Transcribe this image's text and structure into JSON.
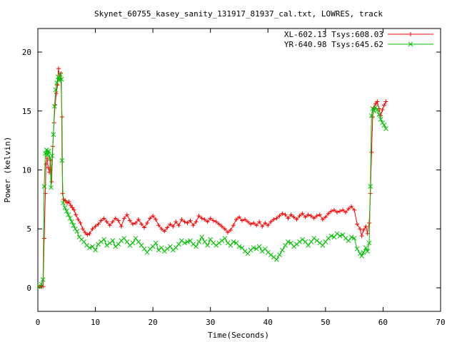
{
  "chart_data": {
    "type": "line",
    "title": "Skynet_60755_kasey_sanity_131917_81937_cal.txt, LOWRES, track",
    "xlabel": "Time(Seconds)",
    "ylabel": "Power (kelvin)",
    "xlim": [
      0,
      70
    ],
    "ylim": [
      -2,
      22
    ],
    "xticks": [
      0,
      10,
      20,
      30,
      40,
      50,
      60,
      70
    ],
    "yticks": [
      0,
      5,
      10,
      15,
      20
    ],
    "grid": false,
    "legend_position": "top-right",
    "series": [
      {
        "name": "XL-602.13 Tsys:608.03",
        "color": "#ff0000",
        "marker": "plus",
        "points": [
          [
            0.3,
            0.1
          ],
          [
            0.6,
            0.2
          ],
          [
            0.9,
            0.1
          ],
          [
            1.1,
            4.2
          ],
          [
            1.3,
            8.0
          ],
          [
            1.4,
            10.5
          ],
          [
            1.6,
            11.0
          ],
          [
            1.8,
            10.2
          ],
          [
            2.0,
            9.8
          ],
          [
            2.2,
            10.8
          ],
          [
            2.4,
            9.0
          ],
          [
            2.6,
            12.0
          ],
          [
            2.8,
            14.0
          ],
          [
            3.0,
            15.5
          ],
          [
            3.2,
            16.5
          ],
          [
            3.4,
            17.2
          ],
          [
            3.6,
            18.6
          ],
          [
            3.8,
            17.8
          ],
          [
            4.0,
            18.2
          ],
          [
            4.2,
            14.5
          ],
          [
            4.3,
            8.0
          ],
          [
            4.5,
            7.5
          ],
          [
            4.8,
            7.4
          ],
          [
            5.1,
            7.2
          ],
          [
            5.4,
            7.3
          ],
          [
            5.7,
            7.0
          ],
          [
            6.0,
            6.8
          ],
          [
            6.3,
            6.6
          ],
          [
            6.6,
            6.2
          ],
          [
            7.0,
            5.8
          ],
          [
            7.4,
            5.5
          ],
          [
            7.8,
            5.0
          ],
          [
            8.2,
            4.7
          ],
          [
            8.6,
            4.5
          ],
          [
            9.0,
            4.6
          ],
          [
            9.5,
            5.0
          ],
          [
            10.0,
            5.2
          ],
          [
            10.5,
            5.4
          ],
          [
            11.0,
            5.7
          ],
          [
            11.5,
            5.9
          ],
          [
            12.0,
            5.6
          ],
          [
            12.5,
            5.3
          ],
          [
            13.0,
            5.6
          ],
          [
            13.5,
            5.9
          ],
          [
            14.0,
            5.7
          ],
          [
            14.5,
            5.2
          ],
          [
            15.0,
            5.9
          ],
          [
            15.5,
            6.2
          ],
          [
            16.0,
            5.7
          ],
          [
            16.5,
            5.4
          ],
          [
            17.0,
            5.5
          ],
          [
            17.5,
            5.8
          ],
          [
            18.0,
            5.4
          ],
          [
            18.5,
            5.1
          ],
          [
            19.0,
            5.5
          ],
          [
            19.5,
            5.9
          ],
          [
            20.0,
            6.1
          ],
          [
            20.5,
            5.8
          ],
          [
            21.0,
            5.3
          ],
          [
            21.5,
            5.0
          ],
          [
            22.0,
            4.8
          ],
          [
            22.5,
            5.1
          ],
          [
            23.0,
            5.4
          ],
          [
            23.5,
            5.2
          ],
          [
            24.0,
            5.6
          ],
          [
            24.5,
            5.3
          ],
          [
            25.0,
            5.8
          ],
          [
            25.5,
            5.6
          ],
          [
            26.0,
            5.5
          ],
          [
            26.5,
            5.7
          ],
          [
            27.0,
            5.3
          ],
          [
            27.5,
            5.6
          ],
          [
            28.0,
            6.1
          ],
          [
            28.5,
            5.9
          ],
          [
            29.0,
            5.8
          ],
          [
            29.5,
            5.6
          ],
          [
            30.0,
            5.9
          ],
          [
            30.5,
            5.7
          ],
          [
            31.0,
            5.6
          ],
          [
            31.5,
            5.4
          ],
          [
            32.0,
            5.2
          ],
          [
            32.5,
            5.0
          ],
          [
            33.0,
            4.7
          ],
          [
            33.5,
            4.9
          ],
          [
            34.0,
            5.3
          ],
          [
            34.5,
            5.8
          ],
          [
            35.0,
            6.0
          ],
          [
            35.5,
            5.7
          ],
          [
            36.0,
            5.8
          ],
          [
            36.5,
            5.6
          ],
          [
            37.0,
            5.4
          ],
          [
            37.5,
            5.5
          ],
          [
            38.0,
            5.3
          ],
          [
            38.5,
            5.6
          ],
          [
            39.0,
            5.2
          ],
          [
            39.5,
            5.5
          ],
          [
            40.0,
            5.3
          ],
          [
            40.5,
            5.6
          ],
          [
            41.0,
            5.8
          ],
          [
            41.5,
            5.9
          ],
          [
            42.0,
            6.1
          ],
          [
            42.5,
            6.3
          ],
          [
            43.0,
            6.2
          ],
          [
            43.5,
            5.9
          ],
          [
            44.0,
            6.2
          ],
          [
            44.5,
            6.0
          ],
          [
            45.0,
            5.8
          ],
          [
            45.5,
            6.1
          ],
          [
            46.0,
            6.3
          ],
          [
            46.5,
            6.0
          ],
          [
            47.0,
            6.2
          ],
          [
            47.5,
            6.1
          ],
          [
            48.0,
            5.9
          ],
          [
            48.5,
            6.1
          ],
          [
            49.0,
            6.2
          ],
          [
            49.5,
            5.8
          ],
          [
            50.0,
            6.0
          ],
          [
            50.5,
            6.3
          ],
          [
            51.0,
            6.5
          ],
          [
            51.5,
            6.6
          ],
          [
            52.0,
            6.4
          ],
          [
            52.5,
            6.5
          ],
          [
            53.0,
            6.6
          ],
          [
            53.5,
            6.4
          ],
          [
            54.0,
            6.7
          ],
          [
            54.5,
            6.9
          ],
          [
            55.0,
            6.6
          ],
          [
            55.5,
            5.4
          ],
          [
            56.0,
            5.0
          ],
          [
            56.3,
            4.4
          ],
          [
            56.6,
            4.9
          ],
          [
            57.0,
            5.2
          ],
          [
            57.3,
            4.6
          ],
          [
            57.6,
            5.5
          ],
          [
            57.8,
            8.0
          ],
          [
            58.0,
            11.5
          ],
          [
            58.2,
            14.5
          ],
          [
            58.4,
            15.3
          ],
          [
            58.7,
            15.6
          ],
          [
            59.0,
            15.8
          ],
          [
            59.3,
            15.2
          ],
          [
            59.6,
            14.6
          ],
          [
            59.9,
            15.1
          ],
          [
            60.2,
            15.5
          ],
          [
            60.5,
            15.8
          ]
        ]
      },
      {
        "name": "YR-640.98 Tsys:645.62",
        "color": "#00c000",
        "marker": "cross",
        "points": [
          [
            0.3,
            0.1
          ],
          [
            0.6,
            0.3
          ],
          [
            0.9,
            0.7
          ],
          [
            1.1,
            8.6
          ],
          [
            1.3,
            11.4
          ],
          [
            1.5,
            11.7
          ],
          [
            1.7,
            11.3
          ],
          [
            1.9,
            11.6
          ],
          [
            2.1,
            11.0
          ],
          [
            2.3,
            8.5
          ],
          [
            2.5,
            11.2
          ],
          [
            2.7,
            13.0
          ],
          [
            2.9,
            15.4
          ],
          [
            3.1,
            16.8
          ],
          [
            3.3,
            17.4
          ],
          [
            3.5,
            17.9
          ],
          [
            3.7,
            17.6
          ],
          [
            3.9,
            18.1
          ],
          [
            4.1,
            17.7
          ],
          [
            4.2,
            10.8
          ],
          [
            4.4,
            7.2
          ],
          [
            4.7,
            6.8
          ],
          [
            5.0,
            6.5
          ],
          [
            5.3,
            6.2
          ],
          [
            5.6,
            5.9
          ],
          [
            5.9,
            5.6
          ],
          [
            6.2,
            5.3
          ],
          [
            6.5,
            5.0
          ],
          [
            6.8,
            4.8
          ],
          [
            7.2,
            4.3
          ],
          [
            7.6,
            4.1
          ],
          [
            8.0,
            3.9
          ],
          [
            8.5,
            3.6
          ],
          [
            9.0,
            3.4
          ],
          [
            9.5,
            3.5
          ],
          [
            10.0,
            3.2
          ],
          [
            10.5,
            3.7
          ],
          [
            11.0,
            3.9
          ],
          [
            11.5,
            4.1
          ],
          [
            12.0,
            3.6
          ],
          [
            12.5,
            3.8
          ],
          [
            13.0,
            4.0
          ],
          [
            13.5,
            3.5
          ],
          [
            14.0,
            3.7
          ],
          [
            14.5,
            4.0
          ],
          [
            15.0,
            4.2
          ],
          [
            15.5,
            3.9
          ],
          [
            16.0,
            3.6
          ],
          [
            16.5,
            3.8
          ],
          [
            17.0,
            4.2
          ],
          [
            17.5,
            3.9
          ],
          [
            18.0,
            3.6
          ],
          [
            18.5,
            3.3
          ],
          [
            19.0,
            3.0
          ],
          [
            19.5,
            3.3
          ],
          [
            20.0,
            3.5
          ],
          [
            20.5,
            3.8
          ],
          [
            21.0,
            3.2
          ],
          [
            21.5,
            3.4
          ],
          [
            22.0,
            3.1
          ],
          [
            22.5,
            3.3
          ],
          [
            23.0,
            3.5
          ],
          [
            23.5,
            3.2
          ],
          [
            24.0,
            3.4
          ],
          [
            24.5,
            3.7
          ],
          [
            25.0,
            4.0
          ],
          [
            25.5,
            3.8
          ],
          [
            26.0,
            3.9
          ],
          [
            26.5,
            4.0
          ],
          [
            27.0,
            3.7
          ],
          [
            27.5,
            3.5
          ],
          [
            28.0,
            3.9
          ],
          [
            28.5,
            4.3
          ],
          [
            29.0,
            3.9
          ],
          [
            29.5,
            3.6
          ],
          [
            30.0,
            4.1
          ],
          [
            30.5,
            3.8
          ],
          [
            31.0,
            3.6
          ],
          [
            31.5,
            3.8
          ],
          [
            32.0,
            4.0
          ],
          [
            32.5,
            4.2
          ],
          [
            33.0,
            3.8
          ],
          [
            33.5,
            3.6
          ],
          [
            34.0,
            3.9
          ],
          [
            34.5,
            3.8
          ],
          [
            35.0,
            3.5
          ],
          [
            35.5,
            3.4
          ],
          [
            36.0,
            3.1
          ],
          [
            36.5,
            2.9
          ],
          [
            37.0,
            3.2
          ],
          [
            37.5,
            3.4
          ],
          [
            38.0,
            3.3
          ],
          [
            38.5,
            3.5
          ],
          [
            39.0,
            3.1
          ],
          [
            39.5,
            3.3
          ],
          [
            40.0,
            3.0
          ],
          [
            40.5,
            2.8
          ],
          [
            41.0,
            2.6
          ],
          [
            41.5,
            2.4
          ],
          [
            42.0,
            2.8
          ],
          [
            42.5,
            3.2
          ],
          [
            43.0,
            3.6
          ],
          [
            43.5,
            3.9
          ],
          [
            44.0,
            3.8
          ],
          [
            44.5,
            3.5
          ],
          [
            45.0,
            3.7
          ],
          [
            45.5,
            3.9
          ],
          [
            46.0,
            4.1
          ],
          [
            46.5,
            3.9
          ],
          [
            47.0,
            3.6
          ],
          [
            47.5,
            3.9
          ],
          [
            48.0,
            4.2
          ],
          [
            48.5,
            4.0
          ],
          [
            49.0,
            3.8
          ],
          [
            49.5,
            3.6
          ],
          [
            50.0,
            3.9
          ],
          [
            50.5,
            4.2
          ],
          [
            51.0,
            4.4
          ],
          [
            51.5,
            4.3
          ],
          [
            52.0,
            4.6
          ],
          [
            52.5,
            4.4
          ],
          [
            53.0,
            4.5
          ],
          [
            53.5,
            4.2
          ],
          [
            54.0,
            4.0
          ],
          [
            54.5,
            4.3
          ],
          [
            55.0,
            4.2
          ],
          [
            55.5,
            3.3
          ],
          [
            56.0,
            2.9
          ],
          [
            56.3,
            2.7
          ],
          [
            56.6,
            3.0
          ],
          [
            57.0,
            3.4
          ],
          [
            57.3,
            3.1
          ],
          [
            57.6,
            3.8
          ],
          [
            57.8,
            8.6
          ],
          [
            58.0,
            14.6
          ],
          [
            58.2,
            15.2
          ],
          [
            58.4,
            15.0
          ],
          [
            58.7,
            15.3
          ],
          [
            59.0,
            15.1
          ],
          [
            59.3,
            14.7
          ],
          [
            59.6,
            14.3
          ],
          [
            59.9,
            14.0
          ],
          [
            60.2,
            13.8
          ],
          [
            60.5,
            13.5
          ]
        ]
      }
    ]
  }
}
